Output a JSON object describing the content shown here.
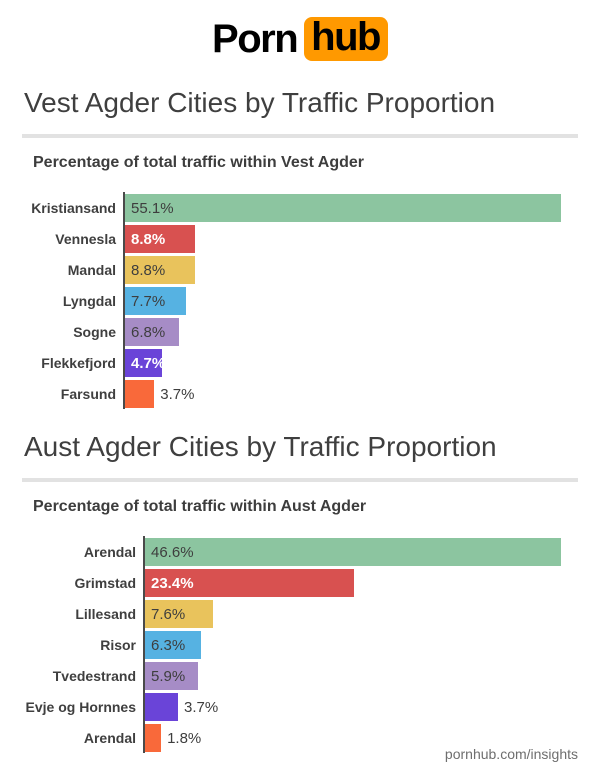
{
  "brand": {
    "logo_left": "Porn",
    "logo_right": "hub",
    "logo_box_color": "#ff9900",
    "logo_text_color": "#000000"
  },
  "footer": {
    "credit": "pornhub.com/insights"
  },
  "style": {
    "axis_color": "#4a4a4a",
    "title_color": "#3f3f3f",
    "rule_color": "#e2e2e2",
    "dark_value_text": "#3e3e3e",
    "white_value_text": "#ffffff"
  },
  "chart_data": [
    {
      "type": "bar",
      "orientation": "horizontal",
      "title": "Vest Agder Cities by Traffic Proportion",
      "subtitle": "Percentage of total traffic within Vest Agder",
      "unit": "%",
      "xlim": [
        0,
        55.1
      ],
      "grid": false,
      "legend": false,
      "categories": [
        "Kristiansand",
        "Vennesla",
        "Mandal",
        "Lyngdal",
        "Sogne",
        "Flekkefjord",
        "Farsund"
      ],
      "values": [
        55.1,
        8.8,
        8.8,
        7.7,
        6.8,
        4.7,
        3.7
      ],
      "value_labels": [
        "55.1%",
        "8.8%",
        "8.8%",
        "7.7%",
        "6.8%",
        "4.7%",
        "3.7%"
      ],
      "bar_colors": [
        "#8cc5a0",
        "#d85150",
        "#e9c35c",
        "#56b2e2",
        "#a68cc6",
        "#6a44d8",
        "#f9693a"
      ],
      "value_label_colors": [
        "#3e3e3e",
        "#ffffff",
        "#3e3e3e",
        "#3e3e3e",
        "#3e3e3e",
        "#ffffff",
        "#3e3e3e"
      ],
      "value_label_inside": [
        true,
        true,
        true,
        true,
        true,
        true,
        false
      ]
    },
    {
      "type": "bar",
      "orientation": "horizontal",
      "title": "Aust Agder Cities by Traffic Proportion",
      "subtitle": "Percentage of total traffic within Aust Agder",
      "unit": "%",
      "xlim": [
        0,
        46.6
      ],
      "grid": false,
      "legend": false,
      "categories": [
        "Arendal",
        "Grimstad",
        "Lillesand",
        "Risor",
        "Tvedestrand",
        "Evje og Hornnes",
        "Arendal"
      ],
      "values": [
        46.6,
        23.4,
        7.6,
        6.3,
        5.9,
        3.7,
        1.8
      ],
      "value_labels": [
        "46.6%",
        "23.4%",
        "7.6%",
        "6.3%",
        "5.9%",
        "3.7%",
        "1.8%"
      ],
      "bar_colors": [
        "#8cc5a0",
        "#d85150",
        "#e9c35c",
        "#56b2e2",
        "#a68cc6",
        "#6a44d8",
        "#f9693a"
      ],
      "value_label_colors": [
        "#3e3e3e",
        "#ffffff",
        "#3e3e3e",
        "#3e3e3e",
        "#3e3e3e",
        "#3e3e3e",
        "#3e3e3e"
      ],
      "value_label_inside": [
        true,
        true,
        true,
        true,
        true,
        false,
        false
      ]
    }
  ]
}
